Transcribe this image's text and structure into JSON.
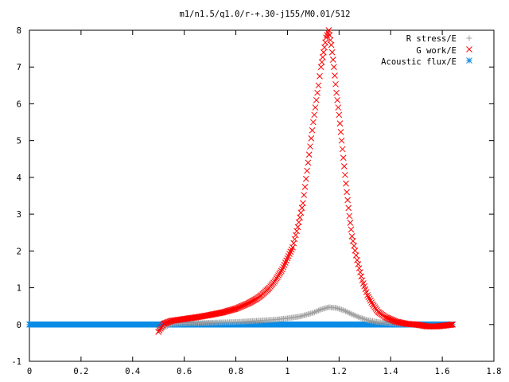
{
  "chart_data": {
    "type": "scatter",
    "title": "m1/n1.5/q1.0/r-+.30-j155/M0.01/512",
    "xlabel": "",
    "ylabel": "",
    "xlim": [
      0,
      1.8
    ],
    "ylim": [
      -1,
      8
    ],
    "x_ticks": [
      "0",
      "0.2",
      "0.4",
      "0.6",
      "0.8",
      "1",
      "1.2",
      "1.4",
      "1.6",
      "1.8"
    ],
    "y_ticks": [
      "-1",
      "0",
      "1",
      "2",
      "3",
      "4",
      "5",
      "6",
      "7",
      "8"
    ],
    "grid": false,
    "legend_position": "top-right",
    "series": [
      {
        "name": "R stress/E",
        "marker": "plus",
        "color": "#a0a0a0",
        "x": [
          0.5,
          0.55,
          0.6,
          0.65,
          0.7,
          0.75,
          0.8,
          0.85,
          0.9,
          0.95,
          1.0,
          1.05,
          1.1,
          1.13,
          1.16,
          1.19,
          1.22,
          1.25,
          1.28,
          1.31,
          1.35,
          1.4,
          1.45,
          1.5,
          1.55,
          1.6,
          1.64
        ],
        "y": [
          -0.15,
          0.01,
          0.03,
          0.04,
          0.05,
          0.06,
          0.07,
          0.09,
          0.11,
          0.13,
          0.17,
          0.22,
          0.32,
          0.41,
          0.47,
          0.45,
          0.38,
          0.28,
          0.19,
          0.12,
          0.07,
          0.03,
          0.01,
          -0.02,
          -0.06,
          -0.05,
          0.0
        ]
      },
      {
        "name": "G work/E",
        "marker": "cross",
        "color": "#ff0000",
        "x": [
          0.5,
          0.52,
          0.55,
          0.6,
          0.65,
          0.7,
          0.75,
          0.8,
          0.85,
          0.88,
          0.9,
          0.93,
          0.95,
          0.98,
          1.0,
          1.02,
          1.04,
          1.06,
          1.08,
          1.1,
          1.12,
          1.13,
          1.14,
          1.15,
          1.16,
          1.17,
          1.18,
          1.19,
          1.2,
          1.21,
          1.22,
          1.23,
          1.24,
          1.25,
          1.27,
          1.29,
          1.31,
          1.33,
          1.35,
          1.38,
          1.42,
          1.46,
          1.5,
          1.54,
          1.58,
          1.62,
          1.64
        ],
        "y": [
          -0.2,
          0.02,
          0.1,
          0.15,
          0.2,
          0.26,
          0.33,
          0.43,
          0.58,
          0.7,
          0.8,
          1.0,
          1.17,
          1.5,
          1.8,
          2.1,
          2.65,
          3.3,
          4.4,
          5.5,
          6.5,
          7.0,
          7.4,
          7.8,
          8.0,
          7.6,
          7.0,
          6.3,
          5.7,
          5.0,
          4.3,
          3.6,
          2.95,
          2.4,
          1.75,
          1.2,
          0.8,
          0.55,
          0.35,
          0.2,
          0.08,
          0.02,
          0.0,
          -0.05,
          -0.05,
          -0.02,
          0.0
        ]
      },
      {
        "name": "Acoustic flux/E",
        "marker": "star",
        "color": "#0a8ce6",
        "x": [
          0.0,
          1.64
        ],
        "y": [
          0.0,
          0.0
        ]
      }
    ]
  }
}
